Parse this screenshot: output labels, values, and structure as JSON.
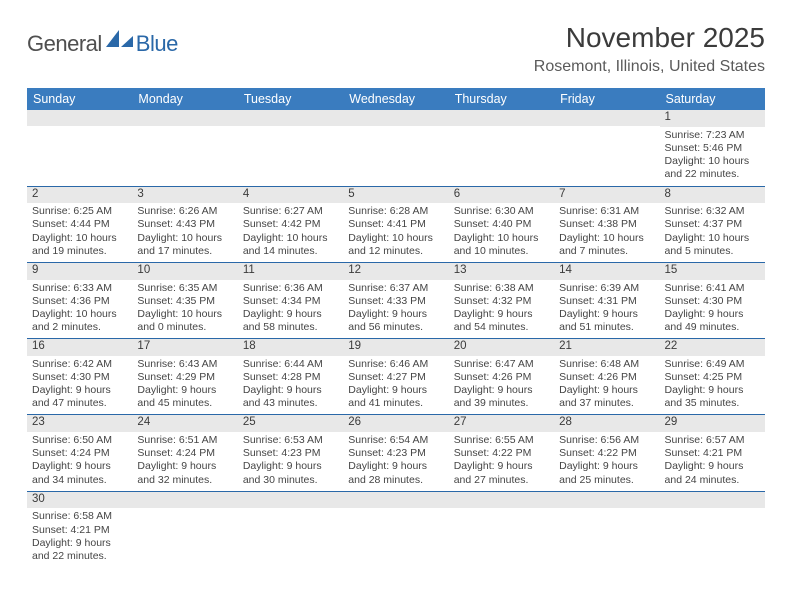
{
  "logo": {
    "text_a": "General",
    "text_b": "Blue"
  },
  "title": "November 2025",
  "location": "Rosemont, Illinois, United States",
  "weekdays": [
    "Sunday",
    "Monday",
    "Tuesday",
    "Wednesday",
    "Thursday",
    "Friday",
    "Saturday"
  ],
  "colors": {
    "header_bg": "#3a7cbf",
    "header_text": "#ffffff",
    "daynum_bg": "#e8e8e8",
    "rule": "#2a68a8",
    "brand_blue": "#2a68a8",
    "brand_gray": "#4f4f4f",
    "body_text": "#454545"
  },
  "weeks": [
    [
      {
        "n": "",
        "sunrise": "",
        "sunset": "",
        "daylight": ""
      },
      {
        "n": "",
        "sunrise": "",
        "sunset": "",
        "daylight": ""
      },
      {
        "n": "",
        "sunrise": "",
        "sunset": "",
        "daylight": ""
      },
      {
        "n": "",
        "sunrise": "",
        "sunset": "",
        "daylight": ""
      },
      {
        "n": "",
        "sunrise": "",
        "sunset": "",
        "daylight": ""
      },
      {
        "n": "",
        "sunrise": "",
        "sunset": "",
        "daylight": ""
      },
      {
        "n": "1",
        "sunrise": "Sunrise: 7:23 AM",
        "sunset": "Sunset: 5:46 PM",
        "daylight": "Daylight: 10 hours and 22 minutes."
      }
    ],
    [
      {
        "n": "2",
        "sunrise": "Sunrise: 6:25 AM",
        "sunset": "Sunset: 4:44 PM",
        "daylight": "Daylight: 10 hours and 19 minutes."
      },
      {
        "n": "3",
        "sunrise": "Sunrise: 6:26 AM",
        "sunset": "Sunset: 4:43 PM",
        "daylight": "Daylight: 10 hours and 17 minutes."
      },
      {
        "n": "4",
        "sunrise": "Sunrise: 6:27 AM",
        "sunset": "Sunset: 4:42 PM",
        "daylight": "Daylight: 10 hours and 14 minutes."
      },
      {
        "n": "5",
        "sunrise": "Sunrise: 6:28 AM",
        "sunset": "Sunset: 4:41 PM",
        "daylight": "Daylight: 10 hours and 12 minutes."
      },
      {
        "n": "6",
        "sunrise": "Sunrise: 6:30 AM",
        "sunset": "Sunset: 4:40 PM",
        "daylight": "Daylight: 10 hours and 10 minutes."
      },
      {
        "n": "7",
        "sunrise": "Sunrise: 6:31 AM",
        "sunset": "Sunset: 4:38 PM",
        "daylight": "Daylight: 10 hours and 7 minutes."
      },
      {
        "n": "8",
        "sunrise": "Sunrise: 6:32 AM",
        "sunset": "Sunset: 4:37 PM",
        "daylight": "Daylight: 10 hours and 5 minutes."
      }
    ],
    [
      {
        "n": "9",
        "sunrise": "Sunrise: 6:33 AM",
        "sunset": "Sunset: 4:36 PM",
        "daylight": "Daylight: 10 hours and 2 minutes."
      },
      {
        "n": "10",
        "sunrise": "Sunrise: 6:35 AM",
        "sunset": "Sunset: 4:35 PM",
        "daylight": "Daylight: 10 hours and 0 minutes."
      },
      {
        "n": "11",
        "sunrise": "Sunrise: 6:36 AM",
        "sunset": "Sunset: 4:34 PM",
        "daylight": "Daylight: 9 hours and 58 minutes."
      },
      {
        "n": "12",
        "sunrise": "Sunrise: 6:37 AM",
        "sunset": "Sunset: 4:33 PM",
        "daylight": "Daylight: 9 hours and 56 minutes."
      },
      {
        "n": "13",
        "sunrise": "Sunrise: 6:38 AM",
        "sunset": "Sunset: 4:32 PM",
        "daylight": "Daylight: 9 hours and 54 minutes."
      },
      {
        "n": "14",
        "sunrise": "Sunrise: 6:39 AM",
        "sunset": "Sunset: 4:31 PM",
        "daylight": "Daylight: 9 hours and 51 minutes."
      },
      {
        "n": "15",
        "sunrise": "Sunrise: 6:41 AM",
        "sunset": "Sunset: 4:30 PM",
        "daylight": "Daylight: 9 hours and 49 minutes."
      }
    ],
    [
      {
        "n": "16",
        "sunrise": "Sunrise: 6:42 AM",
        "sunset": "Sunset: 4:30 PM",
        "daylight": "Daylight: 9 hours and 47 minutes."
      },
      {
        "n": "17",
        "sunrise": "Sunrise: 6:43 AM",
        "sunset": "Sunset: 4:29 PM",
        "daylight": "Daylight: 9 hours and 45 minutes."
      },
      {
        "n": "18",
        "sunrise": "Sunrise: 6:44 AM",
        "sunset": "Sunset: 4:28 PM",
        "daylight": "Daylight: 9 hours and 43 minutes."
      },
      {
        "n": "19",
        "sunrise": "Sunrise: 6:46 AM",
        "sunset": "Sunset: 4:27 PM",
        "daylight": "Daylight: 9 hours and 41 minutes."
      },
      {
        "n": "20",
        "sunrise": "Sunrise: 6:47 AM",
        "sunset": "Sunset: 4:26 PM",
        "daylight": "Daylight: 9 hours and 39 minutes."
      },
      {
        "n": "21",
        "sunrise": "Sunrise: 6:48 AM",
        "sunset": "Sunset: 4:26 PM",
        "daylight": "Daylight: 9 hours and 37 minutes."
      },
      {
        "n": "22",
        "sunrise": "Sunrise: 6:49 AM",
        "sunset": "Sunset: 4:25 PM",
        "daylight": "Daylight: 9 hours and 35 minutes."
      }
    ],
    [
      {
        "n": "23",
        "sunrise": "Sunrise: 6:50 AM",
        "sunset": "Sunset: 4:24 PM",
        "daylight": "Daylight: 9 hours and 34 minutes."
      },
      {
        "n": "24",
        "sunrise": "Sunrise: 6:51 AM",
        "sunset": "Sunset: 4:24 PM",
        "daylight": "Daylight: 9 hours and 32 minutes."
      },
      {
        "n": "25",
        "sunrise": "Sunrise: 6:53 AM",
        "sunset": "Sunset: 4:23 PM",
        "daylight": "Daylight: 9 hours and 30 minutes."
      },
      {
        "n": "26",
        "sunrise": "Sunrise: 6:54 AM",
        "sunset": "Sunset: 4:23 PM",
        "daylight": "Daylight: 9 hours and 28 minutes."
      },
      {
        "n": "27",
        "sunrise": "Sunrise: 6:55 AM",
        "sunset": "Sunset: 4:22 PM",
        "daylight": "Daylight: 9 hours and 27 minutes."
      },
      {
        "n": "28",
        "sunrise": "Sunrise: 6:56 AM",
        "sunset": "Sunset: 4:22 PM",
        "daylight": "Daylight: 9 hours and 25 minutes."
      },
      {
        "n": "29",
        "sunrise": "Sunrise: 6:57 AM",
        "sunset": "Sunset: 4:21 PM",
        "daylight": "Daylight: 9 hours and 24 minutes."
      }
    ],
    [
      {
        "n": "30",
        "sunrise": "Sunrise: 6:58 AM",
        "sunset": "Sunset: 4:21 PM",
        "daylight": "Daylight: 9 hours and 22 minutes."
      },
      {
        "n": "",
        "sunrise": "",
        "sunset": "",
        "daylight": ""
      },
      {
        "n": "",
        "sunrise": "",
        "sunset": "",
        "daylight": ""
      },
      {
        "n": "",
        "sunrise": "",
        "sunset": "",
        "daylight": ""
      },
      {
        "n": "",
        "sunrise": "",
        "sunset": "",
        "daylight": ""
      },
      {
        "n": "",
        "sunrise": "",
        "sunset": "",
        "daylight": ""
      },
      {
        "n": "",
        "sunrise": "",
        "sunset": "",
        "daylight": ""
      }
    ]
  ]
}
